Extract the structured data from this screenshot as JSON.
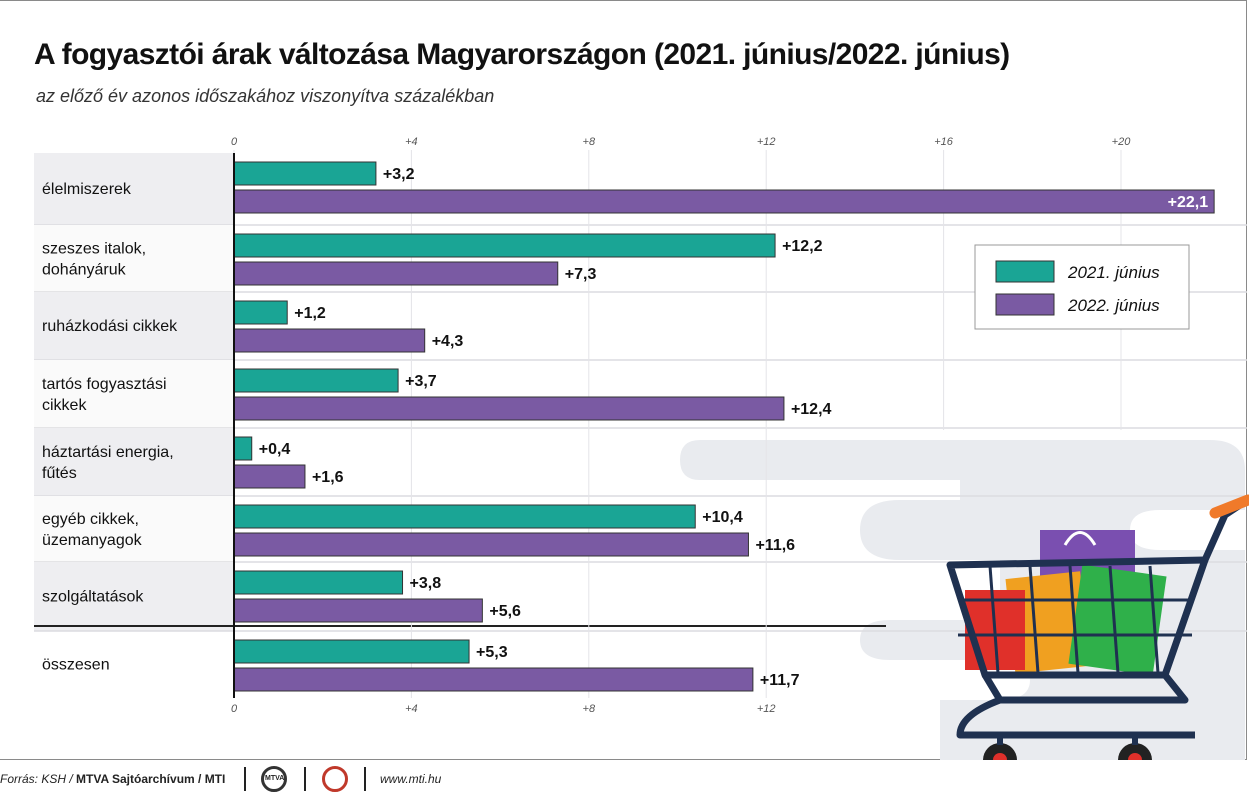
{
  "header": {
    "title": "A fogyasztói árak változása Magyarországon (2021. június/2022. június)",
    "subtitle": "az előző év azonos időszakához viszonyítva százalékban"
  },
  "chart_data": {
    "type": "bar",
    "orientation": "horizontal",
    "categories": [
      "élelmiszerek",
      "szeszes italok, dohányáruk",
      "ruházkodási cikkek",
      "tartós fogyasztási cikkek",
      "háztartási energia, fűtés",
      "egyéb cikkek, üzemanyagok",
      "szolgáltatások",
      "összesen"
    ],
    "category_lines": [
      [
        "élelmiszerek"
      ],
      [
        "szeszes italok,",
        "dohányáruk"
      ],
      [
        "ruházkodási cikkek"
      ],
      [
        "tartós fogyasztási",
        "cikkek"
      ],
      [
        "háztartási energia,",
        "fűtés"
      ],
      [
        "egyéb cikkek,",
        "üzemanyagok"
      ],
      [
        "szolgáltatások"
      ],
      [
        "összesen"
      ]
    ],
    "series": [
      {
        "name": "2021. június",
        "color": "#1aa595",
        "values": [
          3.2,
          12.2,
          1.2,
          3.7,
          0.4,
          10.4,
          3.8,
          5.3
        ],
        "labels": [
          "+3,2",
          "+12,2",
          "+1,2",
          "+3,7",
          "+0,4",
          "+10,4",
          "+3,8",
          "+5,3"
        ]
      },
      {
        "name": "2022. június",
        "color": "#7a5aa3",
        "values": [
          22.1,
          7.3,
          4.3,
          12.4,
          1.6,
          11.6,
          5.6,
          11.7
        ],
        "labels": [
          "+22,1",
          "+7,3",
          "+4,3",
          "+12,4",
          "+1,6",
          "+11,6",
          "+5,6",
          "+11,7"
        ]
      }
    ],
    "top_ticks": [
      "0",
      "+4",
      "+8",
      "+12",
      "+16",
      "+20"
    ],
    "top_tick_values": [
      0,
      4,
      8,
      12,
      16,
      20
    ],
    "bottom_ticks": [
      "0",
      "+4",
      "+8",
      "+12"
    ],
    "xlim": [
      0,
      22.5
    ],
    "grid": true,
    "legend_position": "right"
  },
  "footer": {
    "source_prefix": "Forrás: KSH / ",
    "source_bold": "MTVA Sajtóarchívum / MTI",
    "logo1_text": "MTVA",
    "url": "www.mti.hu"
  },
  "colors": {
    "teal": "#1aa595",
    "purple": "#7a5aa3",
    "row_alt": "#f1f1f3",
    "background_shape": "#e9ebef"
  },
  "illustration": "shopping-cart-with-bags"
}
